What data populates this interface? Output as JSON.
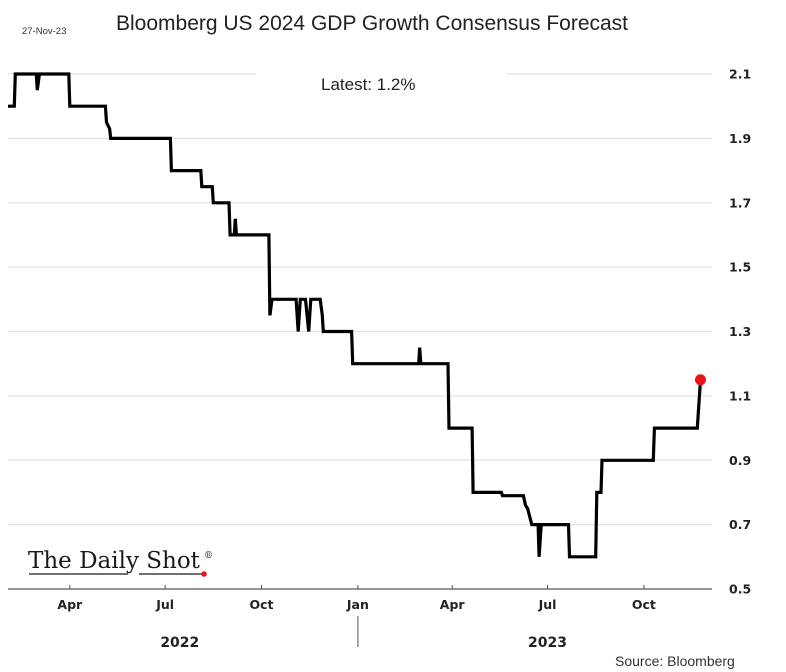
{
  "chart_data": {
    "type": "line",
    "style": "step",
    "title": "Bloomberg US 2024 GDP Growth Consensus Forecast",
    "date_stamp": "27-Nov-23",
    "annotation": "Latest:  1.2%",
    "source": "Source: Bloomberg",
    "watermark": "The Daily Shot",
    "watermark_mark": "®",
    "xlabel": "",
    "ylabel": "",
    "ylim": [
      0.5,
      2.1
    ],
    "yticks": [
      2.1,
      1.9,
      1.7,
      1.5,
      1.3,
      1.1,
      0.9,
      0.7,
      0.5
    ],
    "ytick_labels": [
      "2.1",
      "1.9",
      "1.7",
      "1.5",
      "1.3",
      "1.1",
      "0.9",
      "0.7",
      "0.5"
    ],
    "y_axis_position": "right",
    "grid": true,
    "xlim": [
      "2022-02-01",
      "2023-12-05"
    ],
    "xticks": [
      {
        "date": "2022-04-01",
        "label": "Apr"
      },
      {
        "date": "2022-07-01",
        "label": "Jul"
      },
      {
        "date": "2022-10-01",
        "label": "Oct"
      },
      {
        "date": "2023-01-01",
        "label": "Jan"
      },
      {
        "date": "2023-04-01",
        "label": "Apr"
      },
      {
        "date": "2023-07-01",
        "label": "Jul"
      },
      {
        "date": "2023-10-01",
        "label": "Oct"
      }
    ],
    "year_labels": [
      {
        "date": "2022-07-15",
        "label": "2022"
      },
      {
        "date": "2023-07-01",
        "label": "2023"
      }
    ],
    "year_divider_date": "2023-01-01",
    "series": [
      {
        "name": "US 2024 GDP growth consensus forecast (%)",
        "color": "#000000",
        "points": [
          [
            "2022-02-01",
            2.0
          ],
          [
            "2022-02-07",
            2.0
          ],
          [
            "2022-02-08",
            2.1
          ],
          [
            "2022-02-28",
            2.1
          ],
          [
            "2022-03-01",
            2.05
          ],
          [
            "2022-03-03",
            2.1
          ],
          [
            "2022-03-31",
            2.1
          ],
          [
            "2022-04-01",
            2.0
          ],
          [
            "2022-05-05",
            2.0
          ],
          [
            "2022-05-06",
            1.95
          ],
          [
            "2022-05-09",
            1.93
          ],
          [
            "2022-05-10",
            1.9
          ],
          [
            "2022-07-06",
            1.9
          ],
          [
            "2022-07-07",
            1.8
          ],
          [
            "2022-08-04",
            1.8
          ],
          [
            "2022-08-05",
            1.75
          ],
          [
            "2022-08-15",
            1.75
          ],
          [
            "2022-08-16",
            1.7
          ],
          [
            "2022-08-31",
            1.7
          ],
          [
            "2022-09-01",
            1.6
          ],
          [
            "2022-09-05",
            1.6
          ],
          [
            "2022-09-06",
            1.65
          ],
          [
            "2022-09-07",
            1.6
          ],
          [
            "2022-10-08",
            1.6
          ],
          [
            "2022-10-09",
            1.35
          ],
          [
            "2022-10-11",
            1.4
          ],
          [
            "2022-11-03",
            1.4
          ],
          [
            "2022-11-05",
            1.3
          ],
          [
            "2022-11-07",
            1.4
          ],
          [
            "2022-11-12",
            1.4
          ],
          [
            "2022-11-15",
            1.3
          ],
          [
            "2022-11-17",
            1.4
          ],
          [
            "2022-11-26",
            1.4
          ],
          [
            "2022-11-28",
            1.35
          ],
          [
            "2022-11-29",
            1.3
          ],
          [
            "2022-12-26",
            1.3
          ],
          [
            "2022-12-27",
            1.2
          ],
          [
            "2023-02-28",
            1.2
          ],
          [
            "2023-03-01",
            1.25
          ],
          [
            "2023-03-02",
            1.2
          ],
          [
            "2023-03-28",
            1.2
          ],
          [
            "2023-03-29",
            1.0
          ],
          [
            "2023-04-20",
            1.0
          ],
          [
            "2023-04-21",
            0.8
          ],
          [
            "2023-05-18",
            0.8
          ],
          [
            "2023-05-19",
            0.79
          ],
          [
            "2023-06-08",
            0.79
          ],
          [
            "2023-06-10",
            0.76
          ],
          [
            "2023-06-12",
            0.75
          ],
          [
            "2023-06-16",
            0.7
          ],
          [
            "2023-06-22",
            0.7
          ],
          [
            "2023-06-23",
            0.6
          ],
          [
            "2023-06-25",
            0.7
          ],
          [
            "2023-07-21",
            0.7
          ],
          [
            "2023-07-22",
            0.6
          ],
          [
            "2023-08-16",
            0.6
          ],
          [
            "2023-08-17",
            0.8
          ],
          [
            "2023-08-21",
            0.8
          ],
          [
            "2023-08-22",
            0.9
          ],
          [
            "2023-10-10",
            0.9
          ],
          [
            "2023-10-11",
            1.0
          ],
          [
            "2023-11-21",
            1.0
          ],
          [
            "2023-11-24",
            1.15
          ]
        ]
      }
    ],
    "latest_marker": {
      "date": "2023-11-24",
      "value": 1.15,
      "color": "#e8141a"
    }
  }
}
